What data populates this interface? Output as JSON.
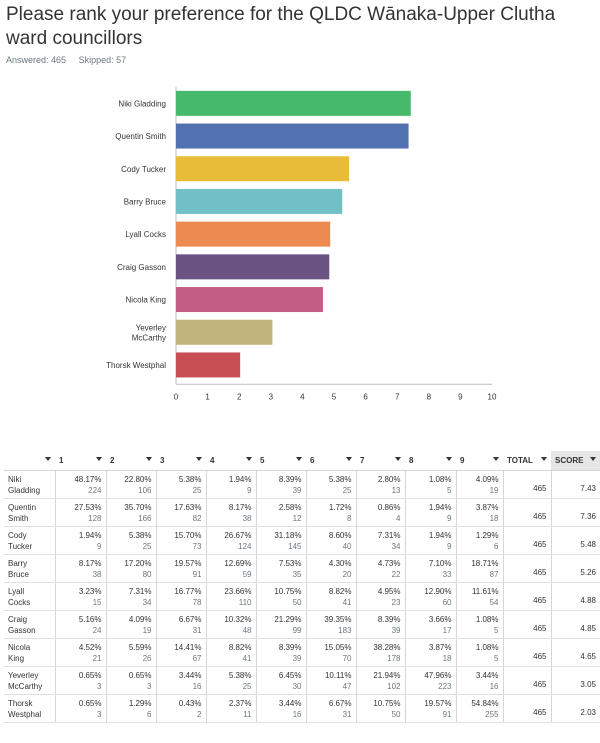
{
  "header": {
    "title": "Please rank your preference for the QLDC Wānaka-Upper Clutha ward councillors",
    "answered": "Answered: 465",
    "skipped": "Skipped: 57"
  },
  "chart_data": {
    "type": "bar",
    "orientation": "horizontal",
    "categories": [
      "Niki Gladding",
      "Quentin Smith",
      "Cody Tucker",
      "Barry Bruce",
      "Lyall Cocks",
      "Craig Gasson",
      "Nicola King",
      "Yeverley McCarthy",
      "Thorsk Westphal"
    ],
    "category_lines": [
      [
        "Niki Gladding"
      ],
      [
        "Quentin Smith"
      ],
      [
        "Cody Tucker"
      ],
      [
        "Barry Bruce"
      ],
      [
        "Lyall Cocks"
      ],
      [
        "Craig Gasson"
      ],
      [
        "Nicola King"
      ],
      [
        "Yeverley",
        "McCarthy"
      ],
      [
        "Thorsk Westphal"
      ]
    ],
    "values": [
      7.43,
      7.36,
      5.48,
      5.26,
      4.88,
      4.85,
      4.65,
      3.05,
      2.03
    ],
    "colors": [
      "#46b96a",
      "#5171b1",
      "#e8bb38",
      "#72bfc6",
      "#ec8a52",
      "#6a5383",
      "#c35d86",
      "#c1b47c",
      "#c74f54"
    ],
    "xlim": [
      0,
      10
    ],
    "xticks": [
      "0",
      "1",
      "2",
      "3",
      "4",
      "5",
      "6",
      "7",
      "8",
      "9",
      "10"
    ],
    "grid": false
  },
  "table": {
    "columns": [
      "",
      "1",
      "2",
      "3",
      "4",
      "5",
      "6",
      "7",
      "8",
      "9",
      "TOTAL",
      "SCORE"
    ],
    "rows": [
      {
        "name": [
          "Niki",
          "Gladding"
        ],
        "pct": [
          "48.17%",
          "22.80%",
          "5.38%",
          "1.94%",
          "8.39%",
          "5.38%",
          "2.80%",
          "1.08%",
          "4.09%"
        ],
        "cnt": [
          "224",
          "106",
          "25",
          "9",
          "39",
          "25",
          "13",
          "5",
          "19"
        ],
        "total": "465",
        "score": "7.43"
      },
      {
        "name": [
          "Quentin",
          "Smith"
        ],
        "pct": [
          "27.53%",
          "35.70%",
          "17.63%",
          "8.17%",
          "2.58%",
          "1.72%",
          "0.86%",
          "1.94%",
          "3.87%"
        ],
        "cnt": [
          "128",
          "166",
          "82",
          "38",
          "12",
          "8",
          "4",
          "9",
          "18"
        ],
        "total": "465",
        "score": "7.36"
      },
      {
        "name": [
          "Cody",
          "Tucker"
        ],
        "pct": [
          "1.94%",
          "5.38%",
          "15.70%",
          "26.67%",
          "31.18%",
          "8.60%",
          "7.31%",
          "1.94%",
          "1.29%"
        ],
        "cnt": [
          "9",
          "25",
          "73",
          "124",
          "145",
          "40",
          "34",
          "9",
          "6"
        ],
        "total": "465",
        "score": "5.48"
      },
      {
        "name": [
          "Barry",
          "Bruce"
        ],
        "pct": [
          "8.17%",
          "17.20%",
          "19.57%",
          "12.69%",
          "7.53%",
          "4.30%",
          "4.73%",
          "7.10%",
          "18.71%"
        ],
        "cnt": [
          "38",
          "80",
          "91",
          "59",
          "35",
          "20",
          "22",
          "33",
          "87"
        ],
        "total": "465",
        "score": "5.26"
      },
      {
        "name": [
          "Lyall",
          "Cocks"
        ],
        "pct": [
          "3.23%",
          "7.31%",
          "16.77%",
          "23.66%",
          "10.75%",
          "8.82%",
          "4.95%",
          "12.90%",
          "11.61%"
        ],
        "cnt": [
          "15",
          "34",
          "78",
          "110",
          "50",
          "41",
          "23",
          "60",
          "54"
        ],
        "total": "465",
        "score": "4.88"
      },
      {
        "name": [
          "Craig",
          "Gasson"
        ],
        "pct": [
          "5.16%",
          "4.09%",
          "6.67%",
          "10.32%",
          "21.29%",
          "39.35%",
          "8.39%",
          "3.66%",
          "1.08%"
        ],
        "cnt": [
          "24",
          "19",
          "31",
          "48",
          "99",
          "183",
          "39",
          "17",
          "5"
        ],
        "total": "465",
        "score": "4.85"
      },
      {
        "name": [
          "Nicola",
          "King"
        ],
        "pct": [
          "4.52%",
          "5.59%",
          "14.41%",
          "8.82%",
          "8.39%",
          "15.05%",
          "38.28%",
          "3.87%",
          "1.08%"
        ],
        "cnt": [
          "21",
          "26",
          "67",
          "41",
          "39",
          "70",
          "178",
          "18",
          "5"
        ],
        "total": "465",
        "score": "4.65"
      },
      {
        "name": [
          "Yeverley",
          "McCarthy"
        ],
        "pct": [
          "0.65%",
          "0.65%",
          "3.44%",
          "5.38%",
          "6.45%",
          "10.11%",
          "21.94%",
          "47.96%",
          "3.44%"
        ],
        "cnt": [
          "3",
          "3",
          "16",
          "25",
          "30",
          "47",
          "102",
          "223",
          "16"
        ],
        "total": "465",
        "score": "3.05"
      },
      {
        "name": [
          "Thorsk",
          "Westphal"
        ],
        "pct": [
          "0.65%",
          "1.29%",
          "0.43%",
          "2.37%",
          "3.44%",
          "6.67%",
          "10.75%",
          "19.57%",
          "54.84%"
        ],
        "cnt": [
          "3",
          "6",
          "2",
          "11",
          "16",
          "31",
          "50",
          "91",
          "255"
        ],
        "total": "465",
        "score": "2.03"
      }
    ]
  }
}
